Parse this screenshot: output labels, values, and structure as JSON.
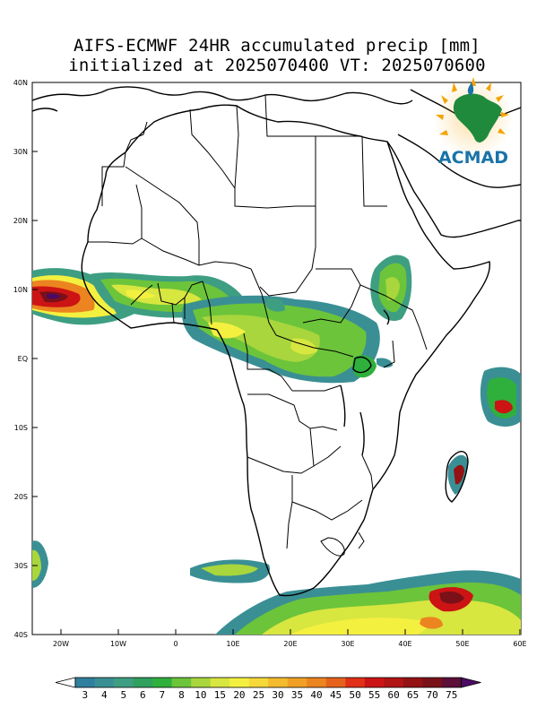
{
  "title": {
    "line1": "AIFS-ECMWF 24HR accumulated precip [mm]",
    "line2": "initialized at 2025070400 VT: 2025070600"
  },
  "logo": {
    "text": "ACMAD",
    "color": "#1a73a8",
    "icon": "africa-sun-logo"
  },
  "axes": {
    "lat_labels": [
      "40N",
      "30N",
      "20N",
      "10N",
      "EQ",
      "10S",
      "20S",
      "30S",
      "40S"
    ],
    "lon_labels": [
      "20W",
      "10W",
      "0",
      "10E",
      "20E",
      "30E",
      "40E",
      "50E",
      "60E"
    ]
  },
  "colorbar": {
    "labels": [
      "3",
      "4",
      "5",
      "6",
      "7",
      "8",
      "10",
      "15",
      "20",
      "25",
      "30",
      "35",
      "40",
      "45",
      "50",
      "55",
      "60",
      "65",
      "70",
      "75"
    ],
    "colors": [
      "#2f7f9e",
      "#3a8f94",
      "#3e9e82",
      "#2fa05e",
      "#2fb03c",
      "#6cc43a",
      "#a8d63c",
      "#d8e640",
      "#f4f040",
      "#f6d838",
      "#f3bb2d",
      "#f0a024",
      "#ec8420",
      "#e6621c",
      "#e03018",
      "#cc1414",
      "#b01414",
      "#941214",
      "#7a1018",
      "#5c0f38",
      "#4b0a64"
    ]
  }
}
